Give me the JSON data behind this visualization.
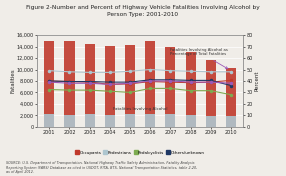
{
  "title": "Figure 2-Number and Percent of Highway Vehicle Fatalities Involving Alcohol by\nPerson Type: 2001-2010",
  "years": [
    2001,
    2002,
    2003,
    2004,
    2005,
    2006,
    2007,
    2008,
    2009,
    2010
  ],
  "ylabel_left": "Fatalities",
  "ylabel_right": "Percent",
  "ylim_left": [
    0,
    16000
  ],
  "ylim_right": [
    0,
    80
  ],
  "yticks_left": [
    0,
    2000,
    4000,
    6000,
    8000,
    10000,
    12000,
    14000,
    16000
  ],
  "yticks_right": [
    0,
    10,
    20,
    30,
    40,
    50,
    60,
    70,
    80
  ],
  "red_bars": [
    14900,
    14900,
    14500,
    14100,
    14200,
    14900,
    13900,
    13100,
    11600,
    10300
  ],
  "blue_bars": [
    2200,
    2100,
    2200,
    2100,
    2200,
    2300,
    2200,
    2100,
    1900,
    1900
  ],
  "occupants": [
    8000,
    7900,
    7800,
    7400,
    7500,
    7900,
    7800,
    7700,
    7800,
    8100
  ],
  "pedestrians": [
    9800,
    9600,
    9500,
    9500,
    9700,
    10000,
    9800,
    9700,
    9600,
    9600
  ],
  "pedalcyclists": [
    6500,
    6400,
    6400,
    6200,
    6000,
    6700,
    6700,
    6300,
    6300,
    5600
  ],
  "others": [
    8000,
    7900,
    7900,
    7800,
    7800,
    8200,
    8200,
    8100,
    8100,
    7200
  ],
  "percent_line": [
    39,
    38,
    38,
    37,
    38,
    40,
    40,
    39,
    39,
    38
  ],
  "annotation_text": "Fatalities Involving Alcohol as\nPercentage of Total Fatalities",
  "annotation_text2": "Fatalities Involving Alcohol",
  "source_text": "SOURCE: U.S. Department of Transportation, National Highway Traffic Safety Administration, Fatality Analysis\nReporting System (FARS) Database as cited in USDOT, RITA, BTS, National Transportation Statistics, table 2-20,\nas of April 2012.",
  "color_red_bar": "#c0392b",
  "color_blue_bar": "#aec6cf",
  "color_occupants": "#c0392b",
  "color_pedestrians": "#aec6cf",
  "color_pedalcyclists": "#7dab50",
  "color_others": "#1f3864",
  "color_percent": "#9b59b6",
  "bg_color": "#f0ede8",
  "legend_labels": [
    "Occupants",
    "Pedestrians",
    "Pedalcyclists",
    "Others/unknown"
  ],
  "legend_colors": [
    "#c0392b",
    "#aec6cf",
    "#7dab50",
    "#1f3864"
  ]
}
